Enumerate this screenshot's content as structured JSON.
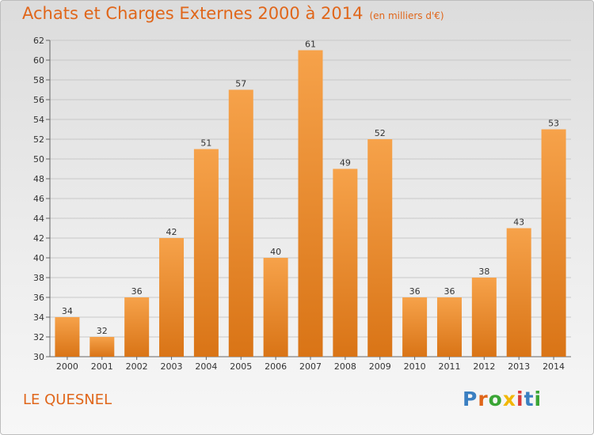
{
  "header": {
    "title": "Achats et Charges Externes 2000 à 2014",
    "subtitle": "(en milliers d'€)"
  },
  "footer": {
    "town": "LE QUESNEL",
    "brand_letters": [
      "P",
      "r",
      "o",
      "x",
      "i",
      "t",
      "i"
    ],
    "brand_colors": [
      "#3a7fc1",
      "#e0661a",
      "#3aa535",
      "#f2b705",
      "#d93a3a",
      "#3a7fc1",
      "#3aa535"
    ]
  },
  "chart_data": {
    "type": "bar",
    "categories": [
      "2000",
      "2001",
      "2002",
      "2003",
      "2004",
      "2005",
      "2006",
      "2007",
      "2008",
      "2009",
      "2010",
      "2011",
      "2012",
      "2013",
      "2014"
    ],
    "values": [
      34,
      32,
      36,
      42,
      51,
      57,
      40,
      61,
      49,
      52,
      36,
      36,
      38,
      43,
      53
    ],
    "ylim": [
      30,
      62
    ],
    "yticks": [
      30,
      32,
      34,
      36,
      38,
      40,
      42,
      44,
      46,
      48,
      50,
      52,
      54,
      56,
      58,
      60,
      62
    ],
    "grid": true,
    "bar_color_light": "#f6a24a",
    "bar_color_dark": "#d97416"
  }
}
